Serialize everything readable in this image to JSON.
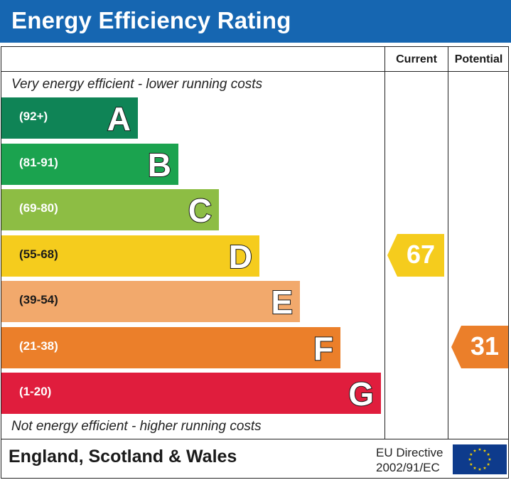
{
  "header": {
    "title": "Energy Efficiency Rating"
  },
  "columns": {
    "current": "Current",
    "potential": "Potential"
  },
  "notes": {
    "top": "Very energy efficient - lower running costs",
    "bottom": "Not energy efficient - higher running costs"
  },
  "chart_data": {
    "type": "bar",
    "categories": [
      "A",
      "B",
      "C",
      "D",
      "E",
      "F",
      "G"
    ],
    "ranges": [
      "(92+)",
      "(81-91)",
      "(69-80)",
      "(55-68)",
      "(39-54)",
      "(21-38)",
      "(1-20)"
    ],
    "colors": [
      "#0f8456",
      "#1ba34f",
      "#8dbd44",
      "#f5cc1d",
      "#f2a96c",
      "#eb7f2a",
      "#e01d3d"
    ],
    "current": {
      "value": 67,
      "band": "D",
      "color": "#f5cc1d"
    },
    "potential": {
      "value": 31,
      "band": "F",
      "color": "#eb7f2a"
    }
  },
  "footer": {
    "country": "England, Scotland & Wales",
    "directive_line1": "EU Directive",
    "directive_line2": "2002/91/EC",
    "flag_colors": {
      "background": "#0e3b8c",
      "stars": "#f5d300"
    }
  }
}
